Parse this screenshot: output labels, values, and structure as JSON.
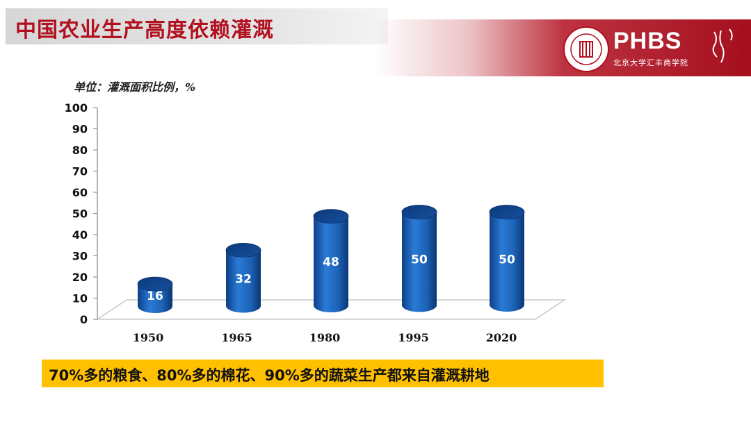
{
  "header": {
    "title": "中国农业生产高度依赖灌溉",
    "logo_text": "PHBS",
    "logo_sub": "北京大学汇丰商学院"
  },
  "chart_data": {
    "type": "bar",
    "unit_label": "单位：灌溉面积比例，%",
    "categories": [
      "1950",
      "1965",
      "1980",
      "1995",
      "2020"
    ],
    "values": [
      16,
      32,
      48,
      50,
      50
    ],
    "data_labels": [
      "16",
      "32",
      "48",
      "50",
      "50"
    ],
    "ylim": [
      0,
      100
    ],
    "yticks": [
      "0",
      "10",
      "20",
      "30",
      "40",
      "50",
      "60",
      "70",
      "80",
      "90",
      "100"
    ],
    "bar_color": "#1c63b7"
  },
  "caption": "70%多的粮食、80%多的棉花、90%多的蔬菜生产都来自灌溉耕地"
}
